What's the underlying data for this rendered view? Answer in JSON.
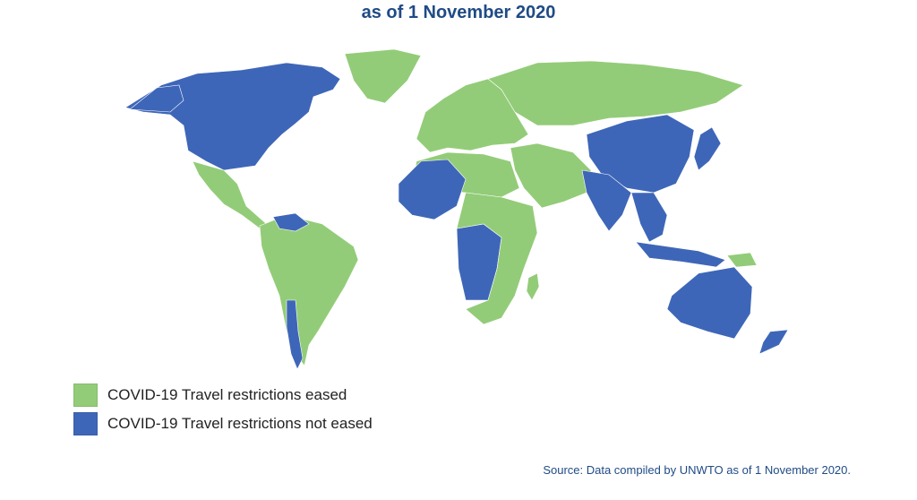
{
  "title": "as of 1 November 2020",
  "colors": {
    "eased": "#93cc78",
    "not_eased": "#3e66b8",
    "title": "#1f4b85",
    "source": "#1f4b85"
  },
  "legend": {
    "items": [
      {
        "label": "COVID-19 Travel restrictions eased",
        "status": "eased"
      },
      {
        "label": "COVID-19 Travel restrictions not eased",
        "status": "not_eased"
      }
    ]
  },
  "source": "Source: Data compiled by UNWTO as of 1 November 2020.",
  "map": {
    "regions": [
      {
        "name": "canada-usa",
        "status": "not_eased"
      },
      {
        "name": "alaska",
        "status": "not_eased"
      },
      {
        "name": "greenland",
        "status": "eased"
      },
      {
        "name": "mexico-central-america",
        "status": "eased"
      },
      {
        "name": "south-america",
        "status": "eased"
      },
      {
        "name": "venezuela",
        "status": "not_eased"
      },
      {
        "name": "chile-argentina-south",
        "status": "not_eased"
      },
      {
        "name": "europe",
        "status": "eased"
      },
      {
        "name": "russia",
        "status": "eased"
      },
      {
        "name": "north-africa",
        "status": "eased"
      },
      {
        "name": "west-africa",
        "status": "not_eased"
      },
      {
        "name": "central-africa",
        "status": "not_eased"
      },
      {
        "name": "east-southern-africa",
        "status": "eased"
      },
      {
        "name": "middle-east",
        "status": "eased"
      },
      {
        "name": "china",
        "status": "not_eased"
      },
      {
        "name": "india",
        "status": "not_eased"
      },
      {
        "name": "southeast-asia",
        "status": "not_eased"
      },
      {
        "name": "japan",
        "status": "not_eased"
      },
      {
        "name": "indonesia",
        "status": "not_eased"
      },
      {
        "name": "australia",
        "status": "not_eased"
      },
      {
        "name": "new-zealand",
        "status": "not_eased"
      },
      {
        "name": "madagascar",
        "status": "eased"
      },
      {
        "name": "papua-new-guinea",
        "status": "eased"
      }
    ]
  }
}
